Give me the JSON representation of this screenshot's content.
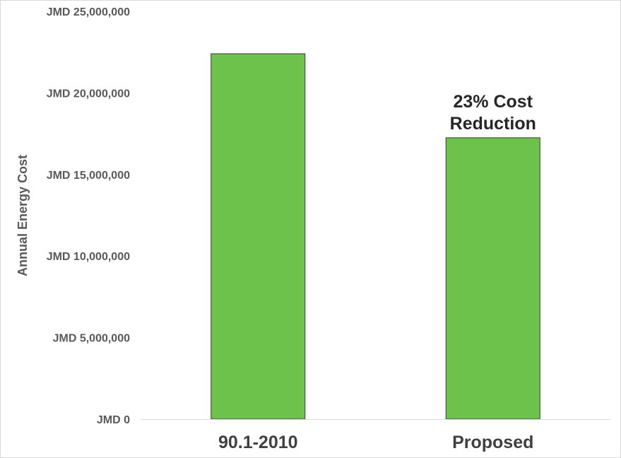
{
  "chart_data": {
    "type": "bar",
    "categories": [
      "90.1-2010",
      "Proposed"
    ],
    "values": [
      22400000,
      17250000
    ],
    "ylabel": "Annual Energy Cost",
    "xlabel": "",
    "ylim": [
      0,
      25000000
    ],
    "yticks": [
      0,
      5000000,
      10000000,
      15000000,
      20000000,
      25000000
    ],
    "ytick_labels": [
      "JMD 0",
      "JMD 5,000,000",
      "JMD 10,000,000",
      "JMD 15,000,000",
      "JMD 20,000,000",
      "JMD 25,000,000"
    ],
    "grid": false,
    "legend": "none",
    "bar_color": "#6cc24a",
    "bar_outline_color": "#3a3a3a",
    "annotations": [
      {
        "category": "Proposed",
        "lines": [
          "23% Cost",
          "Reduction"
        ]
      }
    ]
  }
}
